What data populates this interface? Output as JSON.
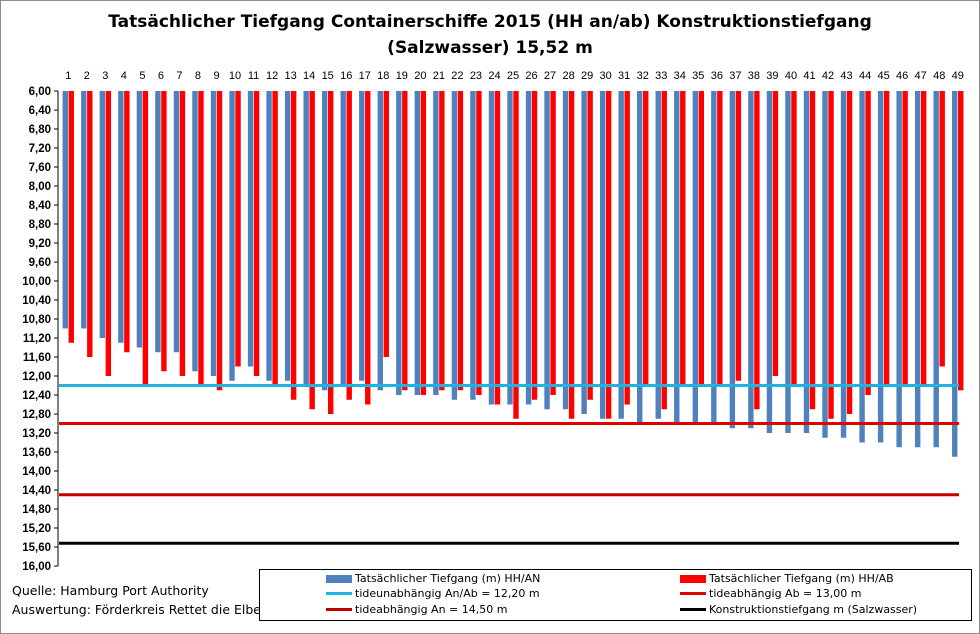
{
  "chart_data": {
    "type": "bar",
    "title_line1": "Tatsächlicher Tiefgang Containerschiffe 2015 (HH an/ab) Konstruktionstiefgang",
    "title_line2": "(Salzwasser) 15,52 m",
    "categories": [
      "1",
      "2",
      "3",
      "4",
      "5",
      "6",
      "7",
      "8",
      "9",
      "10",
      "11",
      "12",
      "13",
      "14",
      "15",
      "16",
      "17",
      "18",
      "19",
      "20",
      "21",
      "22",
      "23",
      "24",
      "25",
      "26",
      "27",
      "28",
      "29",
      "30",
      "31",
      "32",
      "33",
      "34",
      "35",
      "36",
      "37",
      "38",
      "39",
      "40",
      "41",
      "42",
      "43",
      "44",
      "45",
      "46",
      "47",
      "48",
      "49"
    ],
    "y_axis": {
      "inverted": true,
      "min": 6.0,
      "max": 16.0,
      "ticks": [
        "6,00",
        "6,40",
        "6,80",
        "7,20",
        "7,60",
        "8,00",
        "8,40",
        "8,80",
        "9,20",
        "9,60",
        "10,00",
        "10,40",
        "10,80",
        "11,20",
        "11,60",
        "12,00",
        "12,40",
        "12,80",
        "13,20",
        "13,60",
        "14,00",
        "14,40",
        "14,80",
        "15,20",
        "15,60",
        "16,00"
      ]
    },
    "series": [
      {
        "name": "Tatsächlicher Tiefgang (m) HH/AN",
        "color": "#4f81bd",
        "values": [
          11.0,
          11.0,
          11.2,
          11.3,
          11.4,
          11.5,
          11.5,
          11.9,
          12.0,
          12.1,
          11.8,
          12.1,
          12.1,
          12.2,
          12.3,
          12.2,
          12.1,
          12.3,
          12.4,
          12.4,
          12.4,
          12.5,
          12.5,
          12.6,
          12.6,
          12.6,
          12.7,
          12.7,
          12.8,
          12.9,
          12.9,
          13.0,
          12.9,
          13.0,
          13.0,
          13.0,
          13.1,
          13.1,
          13.2,
          13.2,
          13.2,
          13.3,
          13.3,
          13.4,
          13.4,
          13.5,
          13.5,
          13.5,
          13.7
        ]
      },
      {
        "name": "Tatsächlicher Tiefgang (m) HH/AB",
        "color": "#ff0000",
        "values": [
          11.3,
          11.6,
          12.0,
          11.5,
          12.2,
          11.9,
          12.0,
          12.2,
          12.3,
          11.8,
          12.0,
          12.2,
          12.5,
          12.7,
          12.8,
          12.5,
          12.6,
          11.6,
          12.3,
          12.4,
          12.3,
          12.3,
          12.4,
          12.6,
          12.9,
          12.5,
          12.4,
          12.9,
          12.5,
          12.9,
          12.6,
          12.2,
          12.7,
          12.2,
          12.2,
          12.2,
          12.1,
          12.7,
          12.0,
          12.2,
          12.7,
          12.9,
          12.8,
          12.4,
          12.2,
          12.2,
          12.2,
          11.8,
          12.3
        ]
      }
    ],
    "reference_lines": [
      {
        "name": "tideunabhängig An/Ab = 12,20 m",
        "value": 12.2,
        "color": "#1fb4e0"
      },
      {
        "name": "tideabhängig Ab = 13,00 m",
        "value": 13.0,
        "color": "#e00000"
      },
      {
        "name": "tideabhängig An = 14,50 m",
        "value": 14.5,
        "color": "#c00000"
      },
      {
        "name": "Konstruktionstiefgang  m (Salzwasser)",
        "value": 15.52,
        "color": "#000000"
      }
    ],
    "grid": false
  },
  "source": {
    "line1": "Quelle: Hamburg Port Authority",
    "line2": "Auswertung: Förderkreis Rettet die Elbe"
  }
}
